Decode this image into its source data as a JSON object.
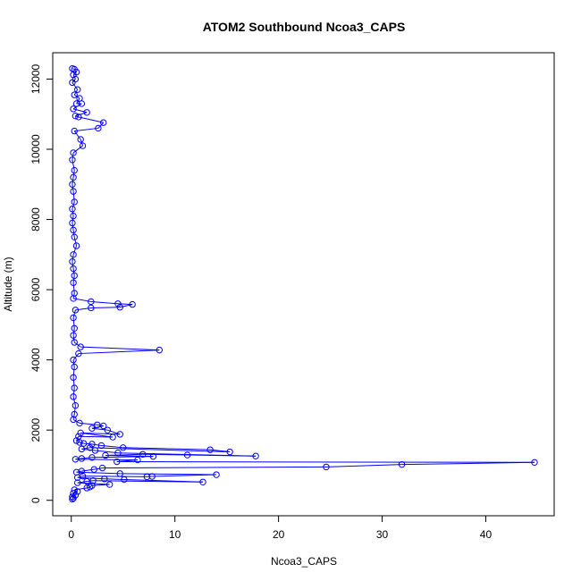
{
  "chart_data": {
    "type": "scatter",
    "title": "ATOM2 Southbound Ncoa3_CAPS",
    "xlabel": "Ncoa3_CAPS",
    "ylabel": "Altitude (m)",
    "xlim": [
      -1.79,
      46.6
    ],
    "ylim": [
      -440,
      12750
    ],
    "x_ticks": [
      0,
      10,
      20,
      30,
      40
    ],
    "y_ticks": [
      0,
      2000,
      4000,
      6000,
      8000,
      10000,
      12000
    ],
    "grid": false,
    "legend": "none",
    "series_color": "#0000ff",
    "marker": "open-circle",
    "connected": true,
    "series": [
      {
        "points": [
          [
            0.1,
            12300
          ],
          [
            0.3,
            12280
          ],
          [
            0.5,
            12200
          ],
          [
            0.2,
            12120
          ],
          [
            0.4,
            12000
          ],
          [
            0.1,
            11900
          ],
          [
            0.6,
            11700
          ],
          [
            0.3,
            11550
          ],
          [
            0.8,
            11450
          ],
          [
            0.5,
            11300
          ],
          [
            1.0,
            11300
          ],
          [
            0.2,
            11150
          ],
          [
            1.5,
            11050
          ],
          [
            0.4,
            10950
          ],
          [
            0.7,
            10920
          ],
          [
            3.1,
            10760
          ],
          [
            2.6,
            10600
          ],
          [
            0.3,
            10520
          ],
          [
            0.9,
            10280
          ],
          [
            1.1,
            10100
          ],
          [
            0.2,
            9900
          ],
          [
            0.1,
            9700
          ],
          [
            0.3,
            9400
          ],
          [
            0.2,
            9200
          ],
          [
            0.1,
            9000
          ],
          [
            0.2,
            8800
          ],
          [
            0.3,
            8500
          ],
          [
            0.1,
            8300
          ],
          [
            0.2,
            8100
          ],
          [
            0.1,
            7900
          ],
          [
            0.2,
            7700
          ],
          [
            0.3,
            7500
          ],
          [
            0.5,
            7250
          ],
          [
            0.2,
            7000
          ],
          [
            0.1,
            6800
          ],
          [
            0.2,
            6600
          ],
          [
            0.3,
            6400
          ],
          [
            0.2,
            6200
          ],
          [
            0.3,
            5900
          ],
          [
            0.2,
            5750
          ],
          [
            1.9,
            5660
          ],
          [
            4.5,
            5600
          ],
          [
            5.9,
            5580
          ],
          [
            4.7,
            5500
          ],
          [
            1.9,
            5480
          ],
          [
            0.4,
            5420
          ],
          [
            0.2,
            5200
          ],
          [
            0.3,
            4900
          ],
          [
            0.2,
            4700
          ],
          [
            0.3,
            4500
          ],
          [
            0.9,
            4370
          ],
          [
            8.5,
            4280
          ],
          [
            0.7,
            4180
          ],
          [
            0.2,
            4000
          ],
          [
            0.3,
            3800
          ],
          [
            0.2,
            3500
          ],
          [
            0.3,
            3200
          ],
          [
            0.2,
            2950
          ],
          [
            0.4,
            2700
          ],
          [
            0.3,
            2450
          ],
          [
            0.2,
            2300
          ],
          [
            0.8,
            2200
          ],
          [
            2.5,
            2150
          ],
          [
            3.1,
            2120
          ],
          [
            2.0,
            2050
          ],
          [
            3.5,
            2000
          ],
          [
            4.7,
            1880
          ],
          [
            0.9,
            1920
          ],
          [
            4.0,
            1800
          ],
          [
            0.7,
            1820
          ],
          [
            0.5,
            1700
          ],
          [
            0.8,
            1650
          ],
          [
            1.2,
            1620
          ],
          [
            2.0,
            1600
          ],
          [
            2.9,
            1560
          ],
          [
            5.0,
            1500
          ],
          [
            13.4,
            1440
          ],
          [
            15.3,
            1380
          ],
          [
            1.8,
            1500
          ],
          [
            1.0,
            1460
          ],
          [
            2.3,
            1420
          ],
          [
            4.5,
            1350
          ],
          [
            17.8,
            1260
          ],
          [
            11.2,
            1290
          ],
          [
            6.9,
            1310
          ],
          [
            3.3,
            1280
          ],
          [
            7.9,
            1250
          ],
          [
            2.0,
            1220
          ],
          [
            1.0,
            1190
          ],
          [
            0.4,
            1170
          ],
          [
            6.4,
            1150
          ],
          [
            4.4,
            1100
          ],
          [
            44.7,
            1080
          ],
          [
            31.9,
            1020
          ],
          [
            24.6,
            950
          ],
          [
            3.0,
            920
          ],
          [
            2.2,
            880
          ],
          [
            1.0,
            830
          ],
          [
            0.5,
            800
          ],
          [
            4.7,
            760
          ],
          [
            14.0,
            730
          ],
          [
            7.8,
            680
          ],
          [
            7.3,
            670
          ],
          [
            1.1,
            690
          ],
          [
            0.6,
            650
          ],
          [
            3.2,
            610
          ],
          [
            5.1,
            590
          ],
          [
            12.7,
            520
          ],
          [
            2.1,
            560
          ],
          [
            1.5,
            540
          ],
          [
            0.6,
            500
          ],
          [
            3.7,
            450
          ],
          [
            2.0,
            420
          ],
          [
            1.8,
            380
          ],
          [
            1.5,
            350
          ],
          [
            0.3,
            300
          ],
          [
            0.6,
            250
          ],
          [
            0.2,
            200
          ],
          [
            0.4,
            150
          ],
          [
            0.1,
            100
          ],
          [
            0.2,
            60
          ],
          [
            0.1,
            30
          ]
        ]
      }
    ]
  }
}
